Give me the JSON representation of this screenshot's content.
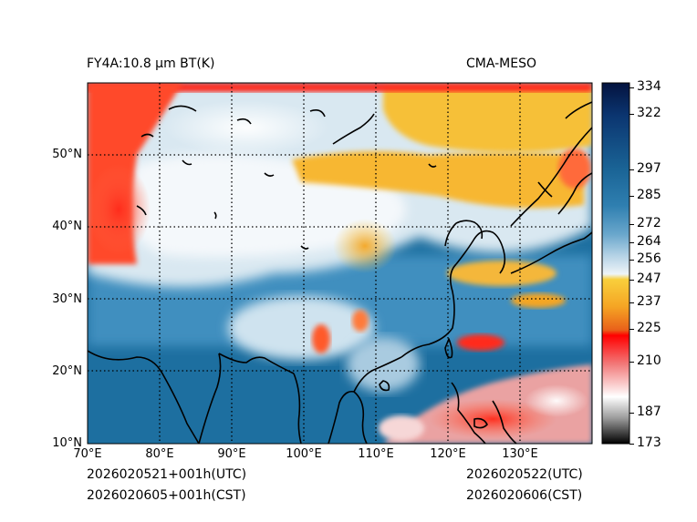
{
  "header": {
    "left_title": "FY4A:10.8 µm BT(K)",
    "right_title": "CMA-MESO"
  },
  "map": {
    "lat_labels": [
      "50°N",
      "40°N",
      "30°N",
      "20°N",
      "10°N"
    ],
    "lon_labels": [
      "70°E",
      "80°E",
      "90°E",
      "100°E",
      "110°E",
      "120°E",
      "130°E"
    ],
    "lon_range": [
      70,
      140
    ],
    "lat_range": [
      10,
      60
    ]
  },
  "colorbar": {
    "range": [
      173,
      336
    ],
    "ticks": [
      "334",
      "322",
      "297",
      "285",
      "272",
      "264",
      "256",
      "247",
      "237",
      "225",
      "210",
      "187",
      "173"
    ],
    "tick_values": [
      334,
      322,
      297,
      285,
      272,
      264,
      256,
      247,
      237,
      225,
      210,
      187,
      173
    ]
  },
  "footer": {
    "left_utc": "2026020521+001h(UTC)",
    "left_cst": "2026020605+001h(CST)",
    "right_utc": "2026020522(UTC)",
    "right_cst": "2026020606(CST)"
  }
}
